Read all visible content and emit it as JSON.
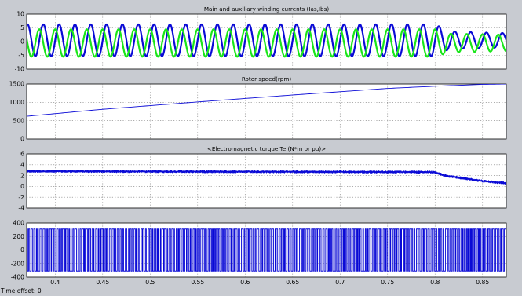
{
  "time_offset": {
    "label": "Time offset:",
    "value": "0"
  },
  "colors": {
    "background": "#c8cbd1",
    "plot_background": "#ffffff",
    "grid": "#7a7a7a",
    "blue": "#0a0ad6",
    "green": "#19e619"
  },
  "chart_data": [
    {
      "type": "line",
      "title": "Main and auxiliary winding currents (Ias,Ibs)",
      "xlim": [
        0.37,
        0.875
      ],
      "ylim": [
        -10,
        10
      ],
      "yticks": [
        -10,
        -5,
        0,
        5,
        10
      ],
      "grid": true,
      "series": [
        {
          "color": "#0a0ad6",
          "model": "sinusoid",
          "frequency_hz": 60,
          "amplitude_segments": [
            [
              0.37,
              5.8
            ],
            [
              0.8,
              5.8
            ],
            [
              0.815,
              3.2
            ],
            [
              0.875,
              2.6
            ]
          ],
          "offset": 0.5,
          "phase_rad": 0
        },
        {
          "color": "#19e619",
          "model": "sinusoid",
          "frequency_hz": 60,
          "amplitude_segments": [
            [
              0.37,
              5.0
            ],
            [
              0.8,
              5.0
            ],
            [
              0.815,
              3.4
            ],
            [
              0.875,
              3.0
            ]
          ],
          "offset": -0.5,
          "phase_rad": 1.5708
        }
      ]
    },
    {
      "type": "line",
      "title": "Rotor speed(rpm)",
      "xlim": [
        0.37,
        0.875
      ],
      "ylim": [
        0,
        1500
      ],
      "yticks": [
        0,
        500,
        1000,
        1500
      ],
      "grid": true,
      "series": [
        {
          "color": "#0a0ad6",
          "x": [
            0.37,
            0.45,
            0.55,
            0.65,
            0.75,
            0.8,
            0.85,
            0.875
          ],
          "y": [
            620,
            810,
            1010,
            1200,
            1380,
            1440,
            1490,
            1500
          ]
        }
      ]
    },
    {
      "type": "line",
      "title": "<Electromagnetic torque Te (N*m or pu)>",
      "xlim": [
        0.37,
        0.875
      ],
      "ylim": [
        -4,
        6
      ],
      "yticks": [
        -4,
        -2,
        0,
        2,
        4,
        6
      ],
      "grid": true,
      "series": [
        {
          "color": "#0a0ad6",
          "x": [
            0.37,
            0.5,
            0.65,
            0.8,
            0.81,
            0.83,
            0.85,
            0.875
          ],
          "y": [
            2.8,
            2.75,
            2.7,
            2.65,
            2.0,
            1.5,
            1.0,
            0.6
          ],
          "ripple": 0.18
        }
      ]
    },
    {
      "type": "line",
      "title": "",
      "xlabel": "",
      "xlim": [
        0.37,
        0.875
      ],
      "ylim": [
        -400,
        400
      ],
      "yticks": [
        -400,
        -200,
        0,
        200,
        400
      ],
      "xticks": [
        0.4,
        0.45,
        0.5,
        0.55,
        0.6,
        0.65,
        0.7,
        0.75,
        0.8,
        0.85
      ],
      "grid": true,
      "series": [
        {
          "color": "#0a0ad6",
          "model": "pwm",
          "levels": [
            -310,
            310
          ]
        }
      ]
    }
  ]
}
